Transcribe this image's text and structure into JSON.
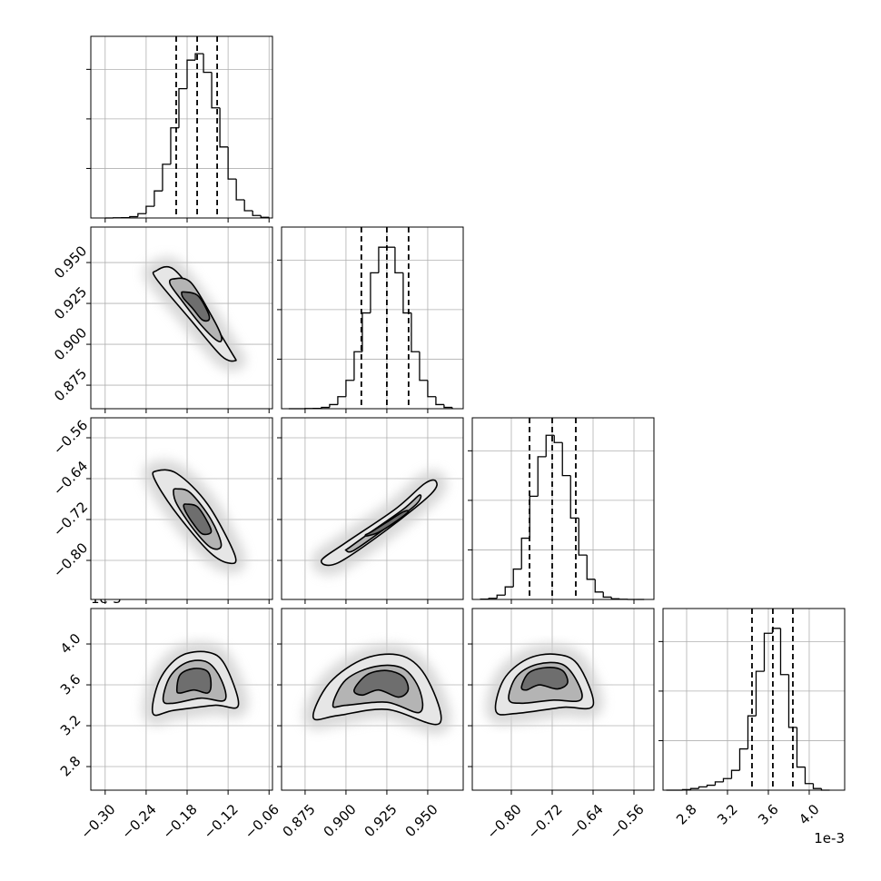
{
  "chart_data": {
    "type": "corner",
    "offset_text": "1e-3",
    "grid": true,
    "line_color": "#000000",
    "parameters": [
      {
        "lim": [
          -0.321,
          -0.055
        ],
        "ticks": [
          {
            "value": -0.3,
            "label": "−0.30"
          },
          {
            "value": -0.24,
            "label": "−0.24"
          },
          {
            "value": -0.18,
            "label": "−0.18"
          },
          {
            "value": -0.12,
            "label": "−0.12"
          },
          {
            "value": -0.06,
            "label": "−0.06"
          }
        ]
      },
      {
        "lim": [
          0.8606,
          0.9717
        ],
        "ticks": [
          0.875,
          {
            "value": 0.9,
            "label": "0.900"
          },
          0.925,
          {
            "value": 0.95,
            "label": "0.950"
          }
        ]
      },
      {
        "lim": [
          -0.8764,
          -0.5209
        ],
        "ticks": [
          {
            "value": -0.8,
            "label": "−0.80"
          },
          {
            "value": -0.72,
            "label": "−0.72"
          },
          {
            "value": -0.64,
            "label": "−0.64"
          },
          {
            "value": -0.56,
            "label": "−0.56"
          }
        ]
      },
      {
        "lim": [
          2.569,
          4.347
        ],
        "ticks": [
          2.8,
          3.2,
          3.6,
          {
            "value": 4.0,
            "label": "4.0"
          }
        ]
      }
    ],
    "histograms": [
      {
        "bins": [
          -0.3,
          -0.288,
          -0.276,
          -0.264,
          -0.252,
          -0.24,
          -0.228,
          -0.216,
          -0.204,
          -0.192,
          -0.18,
          -0.168,
          -0.156,
          -0.144,
          -0.132,
          -0.12,
          -0.108,
          -0.096,
          -0.084,
          -0.072,
          -0.06
        ],
        "counts": [
          0,
          0.001,
          0.002,
          0.008,
          0.026,
          0.071,
          0.164,
          0.325,
          0.546,
          0.783,
          0.956,
          0.995,
          0.882,
          0.667,
          0.43,
          0.236,
          0.11,
          0.044,
          0.015,
          0.004
        ],
        "ylim": [
          0,
          1.1
        ],
        "yticks": [
          0.3,
          0.6,
          0.9
        ],
        "quantiles": [
          -0.196,
          -0.1653,
          -0.136
        ]
      },
      {
        "bins": [
          0.865,
          0.87,
          0.875,
          0.88,
          0.885,
          0.89,
          0.895,
          0.9,
          0.905,
          0.91,
          0.915,
          0.92,
          0.925,
          0.93,
          0.935,
          0.94,
          0.945,
          0.95,
          0.955,
          0.96,
          0.965
        ],
        "counts": [
          0,
          0,
          0.001,
          0.002,
          0.008,
          0.025,
          0.073,
          0.172,
          0.345,
          0.58,
          0.823,
          0.978,
          0.978,
          0.823,
          0.58,
          0.345,
          0.172,
          0.073,
          0.025,
          0.008
        ],
        "ylim": [
          0,
          1.1
        ],
        "yticks": [
          0.3,
          0.6,
          0.9
        ],
        "quantiles": [
          0.9094,
          0.925,
          0.9383
        ]
      },
      {
        "bins": [
          -0.86,
          -0.844,
          -0.828,
          -0.812,
          -0.796,
          -0.78,
          -0.764,
          -0.748,
          -0.732,
          -0.716,
          -0.7,
          -0.684,
          -0.668,
          -0.652,
          -0.636,
          -0.62,
          -0.604,
          -0.588,
          -0.572,
          -0.556,
          -0.54
        ],
        "counts": [
          0.002,
          0.007,
          0.026,
          0.076,
          0.184,
          0.371,
          0.625,
          0.864,
          0.994,
          0.95,
          0.75,
          0.493,
          0.269,
          0.122,
          0.045,
          0.014,
          0.004,
          0.001,
          0,
          0
        ],
        "ylim": [
          0,
          1.1
        ],
        "yticks": [
          0.3,
          0.6,
          0.9
        ],
        "quantiles": [
          -0.7644,
          -0.72,
          -0.6738
        ]
      },
      {
        "bins": [
          2.6,
          2.68,
          2.76,
          2.84,
          2.92,
          3.0,
          3.08,
          3.16,
          3.24,
          3.32,
          3.4,
          3.48,
          3.56,
          3.64,
          3.72,
          3.8,
          3.88,
          3.96,
          4.04,
          4.12,
          4.2
        ],
        "counts": [
          0,
          0,
          0.003,
          0.01,
          0.02,
          0.03,
          0.05,
          0.07,
          0.12,
          0.25,
          0.45,
          0.72,
          0.95,
          0.98,
          0.7,
          0.38,
          0.14,
          0.04,
          0.01,
          0
        ],
        "ylim": [
          0,
          1.1
        ],
        "yticks": [
          0.3,
          0.6,
          0.9
        ],
        "quantiles": [
          3.44,
          3.644,
          3.84
        ]
      }
    ],
    "pairs": [
      {
        "contours": [
          {
            "x": [
              -0.225,
              -0.2,
              -0.16,
              -0.115,
              -0.11,
              -0.13,
              -0.175,
              -0.225
            ],
            "y": [
              0.945,
              0.946,
              0.925,
              0.895,
              0.89,
              0.893,
              0.915,
              0.94
            ]
          },
          {
            "x": [
              -0.2,
              -0.175,
              -0.145,
              -0.13,
              -0.135,
              -0.16,
              -0.19,
              -0.205
            ],
            "y": [
              0.94,
              0.938,
              0.918,
              0.905,
              0.902,
              0.912,
              0.928,
              0.937
            ]
          },
          {
            "x": [
              -0.185,
              -0.165,
              -0.15,
              -0.148,
              -0.158,
              -0.172,
              -0.185,
              -0.188
            ],
            "y": [
              0.932,
              0.93,
              0.92,
              0.915,
              0.915,
              0.922,
              0.928,
              0.931
            ]
          }
        ]
      },
      {
        "contours": [
          {
            "x": [
              -0.225,
              -0.195,
              -0.15,
              -0.11,
              -0.12,
              -0.15,
              -0.2,
              -0.228
            ],
            "y": [
              -0.625,
              -0.63,
              -0.69,
              -0.79,
              -0.805,
              -0.78,
              -0.7,
              -0.64
            ]
          },
          {
            "x": [
              -0.195,
              -0.175,
              -0.145,
              -0.13,
              -0.145,
              -0.17,
              -0.195,
              -0.2
            ],
            "y": [
              -0.66,
              -0.668,
              -0.72,
              -0.77,
              -0.775,
              -0.74,
              -0.69,
              -0.665
            ]
          },
          {
            "x": [
              -0.18,
              -0.165,
              -0.15,
              -0.145,
              -0.158,
              -0.17,
              -0.182,
              -0.185
            ],
            "y": [
              -0.69,
              -0.695,
              -0.725,
              -0.745,
              -0.748,
              -0.73,
              -0.705,
              -0.692
            ]
          }
        ]
      },
      {
        "contours": [
          {
            "x": [
              0.885,
              0.9,
              0.93,
              0.948,
              0.955,
              0.952,
              0.925,
              0.895
            ],
            "y": [
              -0.8,
              -0.765,
              -0.7,
              -0.65,
              -0.645,
              -0.67,
              -0.74,
              -0.805
            ]
          },
          {
            "x": [
              0.902,
              0.915,
              0.935,
              0.945,
              0.943,
              0.925,
              0.905,
              0.9
            ],
            "y": [
              -0.775,
              -0.745,
              -0.7,
              -0.672,
              -0.69,
              -0.735,
              -0.78,
              -0.78
            ]
          },
          {
            "x": [
              0.915,
              0.925,
              0.935,
              0.938,
              0.93,
              0.92,
              0.913,
              0.912
            ],
            "y": [
              -0.745,
              -0.725,
              -0.705,
              -0.705,
              -0.725,
              -0.745,
              -0.752,
              -0.75
            ]
          }
        ]
      },
      {
        "contours": [
          {
            "x": [
              -0.23,
              -0.22,
              -0.19,
              -0.15,
              -0.125,
              -0.105,
              -0.14,
              -0.2
            ],
            "y": [
              3.32,
              3.65,
              3.88,
              3.92,
              3.8,
              3.4,
              3.4,
              3.35
            ]
          },
          {
            "x": [
              -0.215,
              -0.205,
              -0.18,
              -0.15,
              -0.13,
              -0.125,
              -0.16,
              -0.2
            ],
            "y": [
              3.45,
              3.68,
              3.82,
              3.82,
              3.65,
              3.45,
              3.47,
              3.42
            ]
          },
          {
            "x": [
              -0.195,
              -0.19,
              -0.17,
              -0.15,
              -0.145,
              -0.15,
              -0.17,
              -0.19
            ],
            "y": [
              3.55,
              3.7,
              3.76,
              3.73,
              3.6,
              3.52,
              3.55,
              3.52
            ]
          }
        ]
      },
      {
        "contours": [
          {
            "x": [
              0.88,
              0.89,
              0.912,
              0.935,
              0.95,
              0.957,
              0.925,
              0.895
            ],
            "y": [
              3.28,
              3.62,
              3.86,
              3.88,
              3.65,
              3.22,
              3.36,
              3.3
            ]
          },
          {
            "x": [
              0.892,
              0.9,
              0.918,
              0.935,
              0.945,
              0.945,
              0.925,
              0.9
            ],
            "y": [
              3.4,
              3.65,
              3.78,
              3.76,
              3.55,
              3.33,
              3.43,
              3.4
            ]
          },
          {
            "x": [
              0.905,
              0.913,
              0.925,
              0.935,
              0.938,
              0.932,
              0.92,
              0.91
            ],
            "y": [
              3.55,
              3.7,
              3.74,
              3.68,
              3.55,
              3.48,
              3.55,
              3.5
            ]
          }
        ]
      },
      {
        "contours": [
          {
            "x": [
              -0.83,
              -0.815,
              -0.77,
              -0.715,
              -0.67,
              -0.64,
              -0.7,
              -0.79
            ],
            "y": [
              3.34,
              3.65,
              3.85,
              3.9,
              3.8,
              3.4,
              3.38,
              3.32
            ]
          },
          {
            "x": [
              -0.805,
              -0.79,
              -0.75,
              -0.7,
              -0.67,
              -0.665,
              -0.72,
              -0.78
            ],
            "y": [
              3.46,
              3.68,
              3.8,
              3.8,
              3.62,
              3.45,
              3.45,
              3.42
            ]
          },
          {
            "x": [
              -0.78,
              -0.765,
              -0.73,
              -0.7,
              -0.69,
              -0.71,
              -0.745,
              -0.77
            ],
            "y": [
              3.58,
              3.72,
              3.77,
              3.74,
              3.62,
              3.56,
              3.6,
              3.55
            ]
          }
        ]
      }
    ]
  }
}
